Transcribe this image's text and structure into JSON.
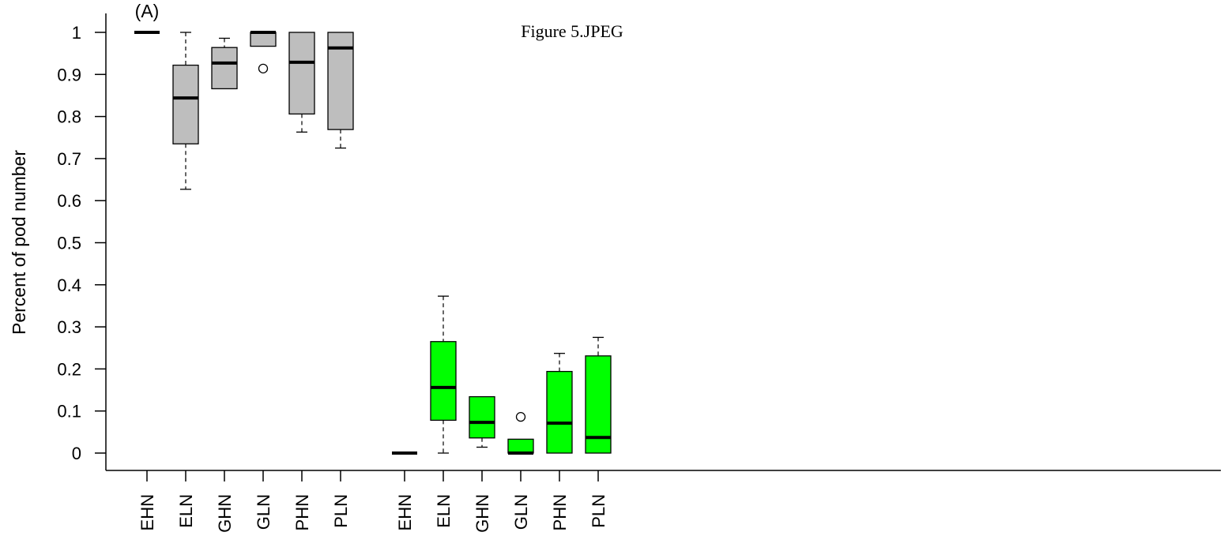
{
  "chart_data": {
    "type": "box",
    "panel_label": "(A)",
    "annotation": "Figure 5.JPEG",
    "ylabel": "Percent of pod number",
    "xlabel": "",
    "ylim": [
      0,
      1
    ],
    "yticks": [
      "0",
      "0.1",
      "0.2",
      "0.3",
      "0.4",
      "0.5",
      "0.6",
      "0.7",
      "0.8",
      "0.9",
      "1"
    ],
    "groups": [
      {
        "color": "#bebebe",
        "boxes": [
          {
            "category": "EHN",
            "whisker_low": 1.0,
            "q1": 1.0,
            "median": 1.0,
            "q3": 1.0,
            "whisker_high": 1.0,
            "outliers": []
          },
          {
            "category": "ELN",
            "whisker_low": 0.627,
            "q1": 0.735,
            "median": 0.844,
            "q3": 0.922,
            "whisker_high": 1.0,
            "outliers": []
          },
          {
            "category": "GHN",
            "whisker_low": 0.866,
            "q1": 0.866,
            "median": 0.927,
            "q3": 0.964,
            "whisker_high": 0.986,
            "outliers": []
          },
          {
            "category": "GLN",
            "whisker_low": 0.967,
            "q1": 0.967,
            "median": 1.0,
            "q3": 1.0,
            "whisker_high": 1.0,
            "outliers": [
              0.914
            ]
          },
          {
            "category": "PHN",
            "whisker_low": 0.763,
            "q1": 0.806,
            "median": 0.929,
            "q3": 1.0,
            "whisker_high": 1.0,
            "outliers": []
          },
          {
            "category": "PLN",
            "whisker_low": 0.725,
            "q1": 0.769,
            "median": 0.963,
            "q3": 1.0,
            "whisker_high": 1.0,
            "outliers": []
          }
        ]
      },
      {
        "color": "#00ff00",
        "boxes": [
          {
            "category": "EHN",
            "whisker_low": 0.0,
            "q1": 0.0,
            "median": 0.0,
            "q3": 0.0,
            "whisker_high": 0.0,
            "outliers": []
          },
          {
            "category": "ELN",
            "whisker_low": 0.0,
            "q1": 0.078,
            "median": 0.156,
            "q3": 0.265,
            "whisker_high": 0.373,
            "outliers": []
          },
          {
            "category": "GHN",
            "whisker_low": 0.014,
            "q1": 0.036,
            "median": 0.073,
            "q3": 0.134,
            "whisker_high": 0.134,
            "outliers": []
          },
          {
            "category": "GLN",
            "whisker_low": 0.0,
            "q1": 0.0,
            "median": 0.0,
            "q3": 0.033,
            "whisker_high": 0.033,
            "outliers": [
              0.086
            ]
          },
          {
            "category": "PHN",
            "whisker_low": 0.0,
            "q1": 0.0,
            "median": 0.071,
            "q3": 0.194,
            "whisker_high": 0.237,
            "outliers": []
          },
          {
            "category": "PLN",
            "whisker_low": 0.0,
            "q1": 0.0,
            "median": 0.037,
            "q3": 0.231,
            "whisker_high": 0.275,
            "outliers": []
          }
        ]
      }
    ]
  }
}
